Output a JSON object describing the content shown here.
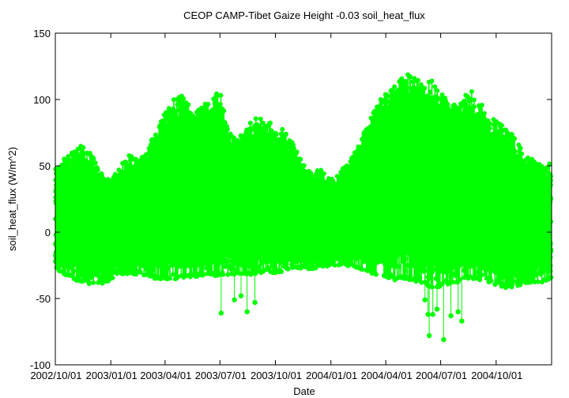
{
  "colors": {
    "series": "#00ff00",
    "axis": "#000000",
    "background": "#ffffff"
  },
  "chart_data": {
    "type": "line",
    "title": "CEOP CAMP-Tibet Gaize Height -0.03 soil_heat_flux",
    "xlabel": "Date",
    "ylabel": "soil_heat_flux (W/m^2)",
    "grid": false,
    "legend": "none",
    "x_range": [
      "2002-10-01",
      "2005-01-01"
    ],
    "ylim": [
      -100,
      150
    ],
    "y_ticks": [
      -100,
      -50,
      0,
      50,
      100,
      150
    ],
    "y_tick_labels": [
      "-100",
      "-50",
      "0",
      "50",
      "100",
      "150"
    ],
    "x_ticks": [
      "2002-10-01",
      "2003-01-01",
      "2003-04-01",
      "2003-07-01",
      "2003-10-01",
      "2004-01-01",
      "2004-04-01",
      "2004-07-01",
      "2004-10-01"
    ],
    "x_tick_labels": [
      "2002/10/01",
      "2003/01/01",
      "2003/04/01",
      "2003/07/01",
      "2003/10/01",
      "2004/01/01",
      "2004/04/01",
      "2004/07/01",
      "2004/10/01"
    ],
    "series": [
      {
        "name": "",
        "style": "line with points",
        "envelope": {
          "dates": [
            "2002-10-01",
            "2002-10-15",
            "2002-11-01",
            "2002-11-15",
            "2002-12-01",
            "2002-12-15",
            "2003-01-01",
            "2003-01-15",
            "2003-02-01",
            "2003-02-15",
            "2003-03-01",
            "2003-03-15",
            "2003-04-01",
            "2003-04-15",
            "2003-05-01",
            "2003-05-15",
            "2003-06-01",
            "2003-06-15",
            "2003-07-01",
            "2003-07-15",
            "2003-08-01",
            "2003-08-15",
            "2003-09-01",
            "2003-09-15",
            "2003-10-01",
            "2003-10-15",
            "2003-11-01",
            "2003-11-15",
            "2003-12-01",
            "2003-12-15",
            "2004-01-01",
            "2004-01-15",
            "2004-02-01",
            "2004-02-15",
            "2004-03-01",
            "2004-03-15",
            "2004-04-01",
            "2004-04-15",
            "2004-05-01",
            "2004-05-15",
            "2004-06-01",
            "2004-06-15",
            "2004-07-01",
            "2004-07-15",
            "2004-08-01",
            "2004-08-15",
            "2004-09-01",
            "2004-09-15",
            "2004-10-01",
            "2004-10-15",
            "2004-11-01",
            "2004-11-15",
            "2004-12-01",
            "2004-12-15",
            "2004-12-31"
          ],
          "daily_max": [
            48,
            55,
            62,
            66,
            58,
            45,
            38,
            50,
            58,
            55,
            60,
            75,
            90,
            100,
            105,
            92,
            95,
            100,
            108,
            75,
            70,
            82,
            88,
            85,
            80,
            78,
            65,
            52,
            45,
            48,
            40,
            45,
            55,
            65,
            80,
            95,
            105,
            110,
            118,
            120,
            112,
            115,
            105,
            100,
            95,
            110,
            102,
            90,
            85,
            80,
            72,
            60,
            55,
            50,
            52
          ],
          "daily_min": [
            -28,
            -32,
            -36,
            -38,
            -40,
            -40,
            -36,
            -32,
            -32,
            -32,
            -33,
            -35,
            -36,
            -36,
            -35,
            -34,
            -33,
            -33,
            -33,
            -33,
            -32,
            -33,
            -32,
            -31,
            -31,
            -30,
            -28,
            -27,
            -28,
            -27,
            -26,
            -25,
            -27,
            -28,
            -30,
            -32,
            -34,
            -36,
            -36,
            -36,
            -40,
            -42,
            -42,
            -40,
            -38,
            -36,
            -36,
            -37,
            -40,
            -42,
            -42,
            -40,
            -38,
            -38,
            -36
          ]
        },
        "outliers": [
          {
            "date": "2003-06-10",
            "value": -20
          },
          {
            "date": "2003-07-03",
            "value": -61
          },
          {
            "date": "2003-07-25",
            "value": -51
          },
          {
            "date": "2003-08-05",
            "value": -48
          },
          {
            "date": "2003-08-15",
            "value": -60
          },
          {
            "date": "2003-08-28",
            "value": -53
          },
          {
            "date": "2004-06-05",
            "value": -51
          },
          {
            "date": "2004-06-10",
            "value": -62
          },
          {
            "date": "2004-06-12",
            "value": -78
          },
          {
            "date": "2004-06-18",
            "value": -62
          },
          {
            "date": "2004-06-25",
            "value": -58
          },
          {
            "date": "2004-07-06",
            "value": -81
          },
          {
            "date": "2004-07-18",
            "value": -63
          },
          {
            "date": "2004-07-30",
            "value": -60
          },
          {
            "date": "2004-08-05",
            "value": -67
          }
        ]
      }
    ]
  }
}
